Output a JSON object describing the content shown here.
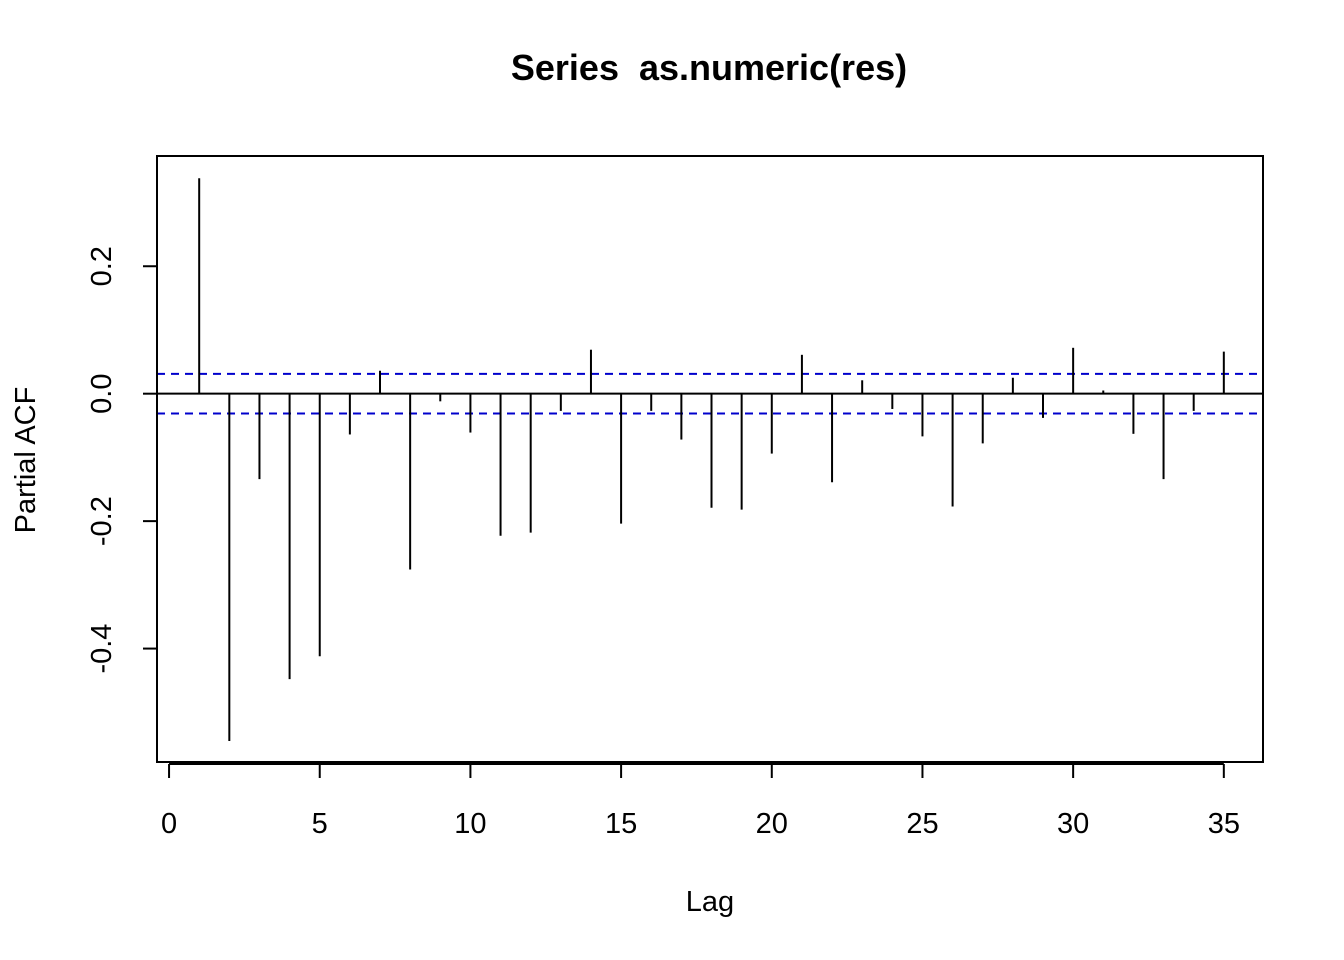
{
  "chart_data": {
    "type": "bar",
    "title": "Series  as.numeric(res)",
    "xlabel": "Lag",
    "ylabel": "Partial ACF",
    "xlim": [
      -0.4,
      36.3
    ],
    "ylim": [
      -0.578,
      0.373
    ],
    "x_ticks": [
      0,
      5,
      10,
      15,
      20,
      25,
      30,
      35
    ],
    "y_ticks": [
      -0.4,
      -0.2,
      0.0,
      0.2
    ],
    "y_tick_labels": [
      "-0.4",
      "-0.2",
      "0.0",
      "0.2"
    ],
    "ci_bound": 0.031,
    "ci_color": "#0000cc",
    "bar_color": "#000000",
    "grid": false,
    "lags": [
      1,
      2,
      3,
      4,
      5,
      6,
      7,
      8,
      9,
      10,
      11,
      12,
      13,
      14,
      15,
      16,
      17,
      18,
      19,
      20,
      21,
      22,
      23,
      24,
      25,
      26,
      27,
      28,
      29,
      30,
      31,
      32,
      33,
      34,
      35
    ],
    "values": [
      0.338,
      -0.545,
      -0.134,
      -0.448,
      -0.412,
      -0.064,
      0.036,
      -0.276,
      -0.012,
      -0.061,
      -0.223,
      -0.218,
      -0.027,
      0.069,
      -0.204,
      -0.027,
      -0.072,
      -0.179,
      -0.182,
      -0.094,
      0.061,
      -0.139,
      0.021,
      -0.024,
      -0.067,
      -0.177,
      -0.078,
      0.025,
      -0.038,
      0.072,
      0.005,
      -0.063,
      -0.134,
      -0.027,
      0.066
    ]
  }
}
